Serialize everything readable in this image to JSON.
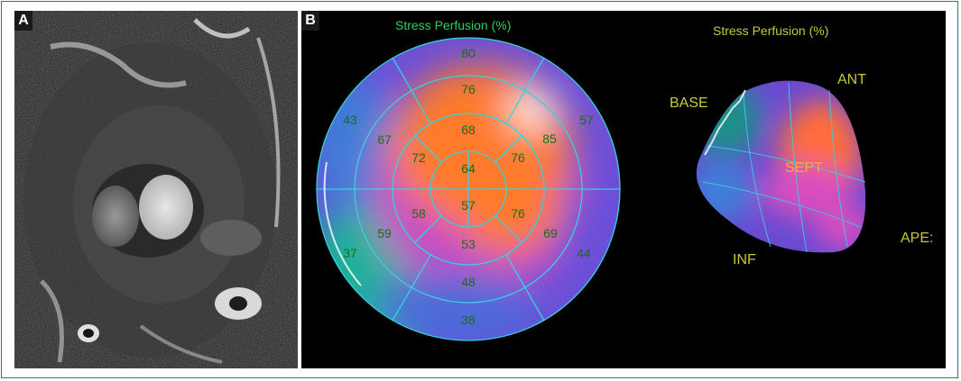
{
  "panel_a": {
    "letter": "A"
  },
  "panel_b": {
    "letter": "B",
    "bullseye": {
      "title": "Stress Perfusion (%)",
      "segments": [
        "80",
        "76",
        "68",
        "64",
        "57",
        "53",
        "48",
        "38",
        "43",
        "67",
        "72",
        "58",
        "59",
        "37",
        "57",
        "85",
        "76",
        "76",
        "69",
        "44"
      ]
    },
    "model_3d": {
      "title": "Stress Perfusion (%)",
      "labels": {
        "base": "BASE",
        "ant": "ANT",
        "sept": "SEPT",
        "inf": "INF",
        "apex": "APE:"
      }
    }
  },
  "colors": {
    "frame": "#3d6f86",
    "segment_text": "#1f6b1a",
    "title_green": "#2bd15a",
    "label_yellow": "#c8c83a"
  }
}
